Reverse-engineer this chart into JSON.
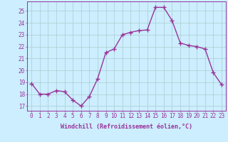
{
  "x": [
    0,
    1,
    2,
    3,
    4,
    5,
    6,
    7,
    8,
    9,
    10,
    11,
    12,
    13,
    14,
    15,
    16,
    17,
    18,
    19,
    20,
    21,
    22,
    23
  ],
  "y": [
    18.9,
    18.0,
    18.0,
    18.3,
    18.2,
    17.5,
    17.0,
    17.8,
    19.3,
    21.5,
    21.8,
    23.0,
    23.2,
    23.35,
    23.4,
    25.3,
    25.3,
    24.2,
    22.3,
    22.1,
    22.0,
    21.8,
    19.8,
    18.8
  ],
  "line_color": "#993399",
  "marker": "+",
  "marker_size": 4,
  "line_width": 1.0,
  "xlabel": "Windchill (Refroidissement éolien,°C)",
  "xlabel_fontsize": 6.0,
  "ylabel_ticks": [
    17,
    18,
    19,
    20,
    21,
    22,
    23,
    24,
    25
  ],
  "ylim": [
    16.6,
    25.8
  ],
  "xlim": [
    -0.5,
    23.5
  ],
  "background_color": "#cceeff",
  "grid_color": "#aacccc",
  "tick_fontsize": 5.5
}
